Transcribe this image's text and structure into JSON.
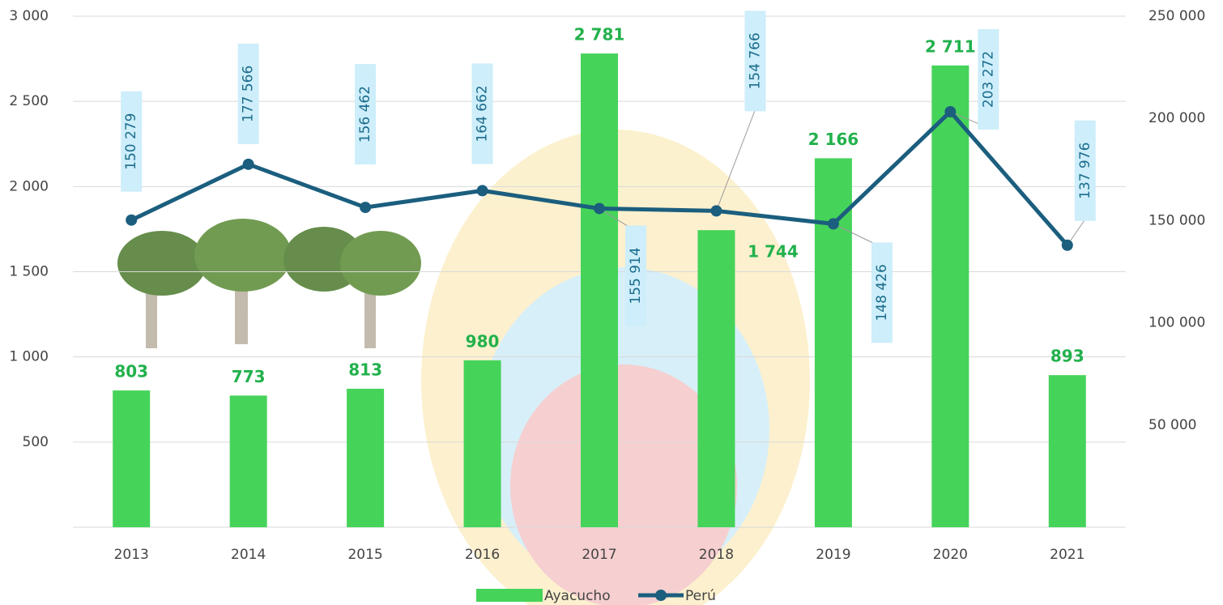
{
  "chart_data": {
    "type": "bar_line",
    "categories": [
      "2013",
      "2014",
      "2015",
      "2016",
      "2017",
      "2018",
      "2019",
      "2020",
      "2021"
    ],
    "series": [
      {
        "name": "Ayacucho",
        "type": "bar",
        "color": "#46d35a",
        "values": [
          803,
          773,
          813,
          980,
          2781,
          1744,
          2166,
          2711,
          893
        ],
        "value_labels": [
          "803",
          "773",
          "813",
          "980",
          "2 781",
          "1 744",
          "2 166",
          "2 711",
          "893"
        ]
      },
      {
        "name": "Perú",
        "type": "line",
        "axis": "y2",
        "color": "#1b5e7e",
        "values": [
          150279,
          177566,
          156462,
          164662,
          155914,
          154766,
          148426,
          203272,
          137976
        ],
        "value_labels": [
          "150 279",
          "177 566",
          "156 462",
          "164 662",
          "155 914",
          "154 766",
          "148 426",
          "203 272",
          "137 976"
        ]
      }
    ],
    "ylim": [
      0,
      3000
    ],
    "yticks": [
      {
        "value": 500,
        "label": "500"
      },
      {
        "value": 1000,
        "label": "1 000"
      },
      {
        "value": 1500,
        "label": "1 500"
      },
      {
        "value": 2000,
        "label": "2 000"
      },
      {
        "value": 2500,
        "label": "2 500"
      },
      {
        "value": 3000,
        "label": "3 000"
      }
    ],
    "y2lim": [
      0,
      250000
    ],
    "y2ticks": [
      {
        "value": 50000,
        "label": "50 000"
      },
      {
        "value": 100000,
        "label": "100 000"
      },
      {
        "value": 150000,
        "label": "150 000"
      },
      {
        "value": 200000,
        "label": "200 000"
      },
      {
        "value": 250000,
        "label": "250 000"
      }
    ],
    "grid": true,
    "legend": "bottom"
  }
}
